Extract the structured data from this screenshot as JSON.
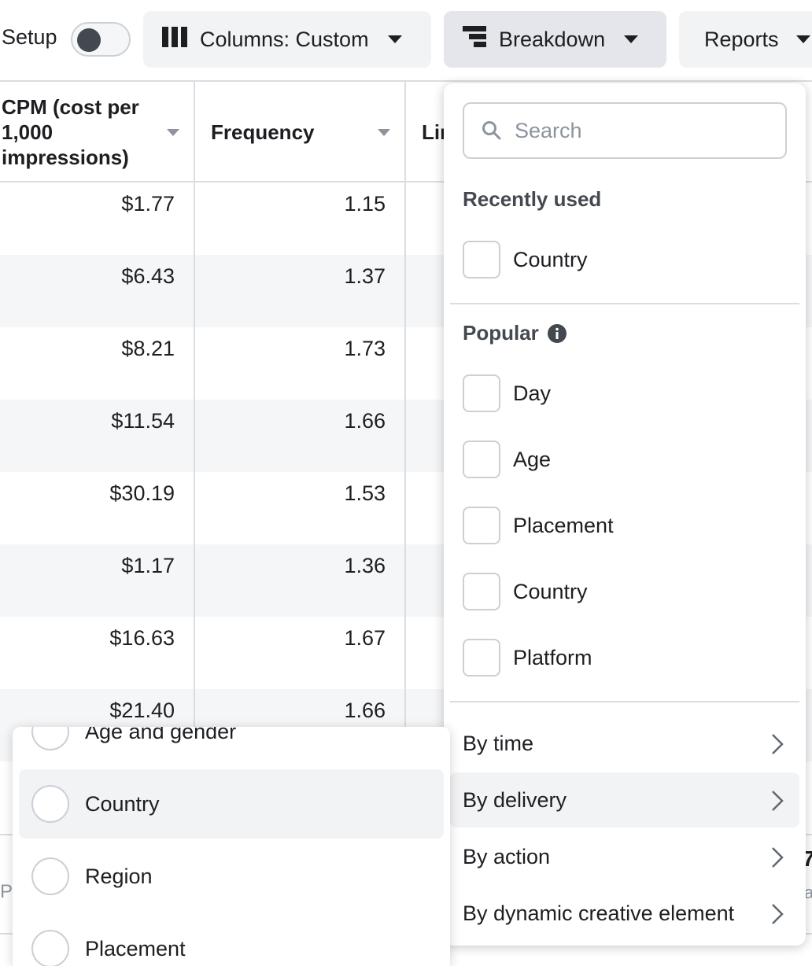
{
  "toolbar": {
    "setup_label": "Setup",
    "columns_label": "Columns: Custom",
    "breakdown_label": "Breakdown",
    "reports_label": "Reports"
  },
  "table": {
    "headers": {
      "cpm": "CPM (cost per 1,000 impressions)",
      "frequency": "Frequency",
      "partial": "Lir"
    },
    "rows": [
      {
        "cpm": "$1.77",
        "frequency": "1.15"
      },
      {
        "cpm": "$6.43",
        "frequency": "1.37"
      },
      {
        "cpm": "$8.21",
        "frequency": "1.73"
      },
      {
        "cpm": "$11.54",
        "frequency": "1.66"
      },
      {
        "cpm": "$30.19",
        "frequency": "1.53"
      },
      {
        "cpm": "$1.17",
        "frequency": "1.36"
      },
      {
        "cpm": "$16.63",
        "frequency": "1.67"
      },
      {
        "cpm": "$21.40",
        "frequency": "1.66"
      }
    ],
    "footer_partial_left": "P",
    "footer_partial_right_value": "7",
    "footer_partial_right_sub": "a"
  },
  "breakdown": {
    "search_placeholder": "Search",
    "recently_used_title": "Recently used",
    "recently_used": [
      "Country"
    ],
    "popular_title": "Popular",
    "popular": [
      "Day",
      "Age",
      "Placement",
      "Country",
      "Platform"
    ],
    "nav": [
      "By time",
      "By delivery",
      "By action",
      "By dynamic creative element"
    ],
    "highlighted_nav": "By delivery"
  },
  "delivery_submenu": {
    "items": [
      "Age and gender",
      "Country",
      "Region",
      "Placement"
    ],
    "highlighted": "Country"
  },
  "colors": {
    "text": "#1c1e21",
    "border": "#ccd0d5",
    "row_alt": "#f5f6f7",
    "highlight": "#f2f3f5"
  }
}
